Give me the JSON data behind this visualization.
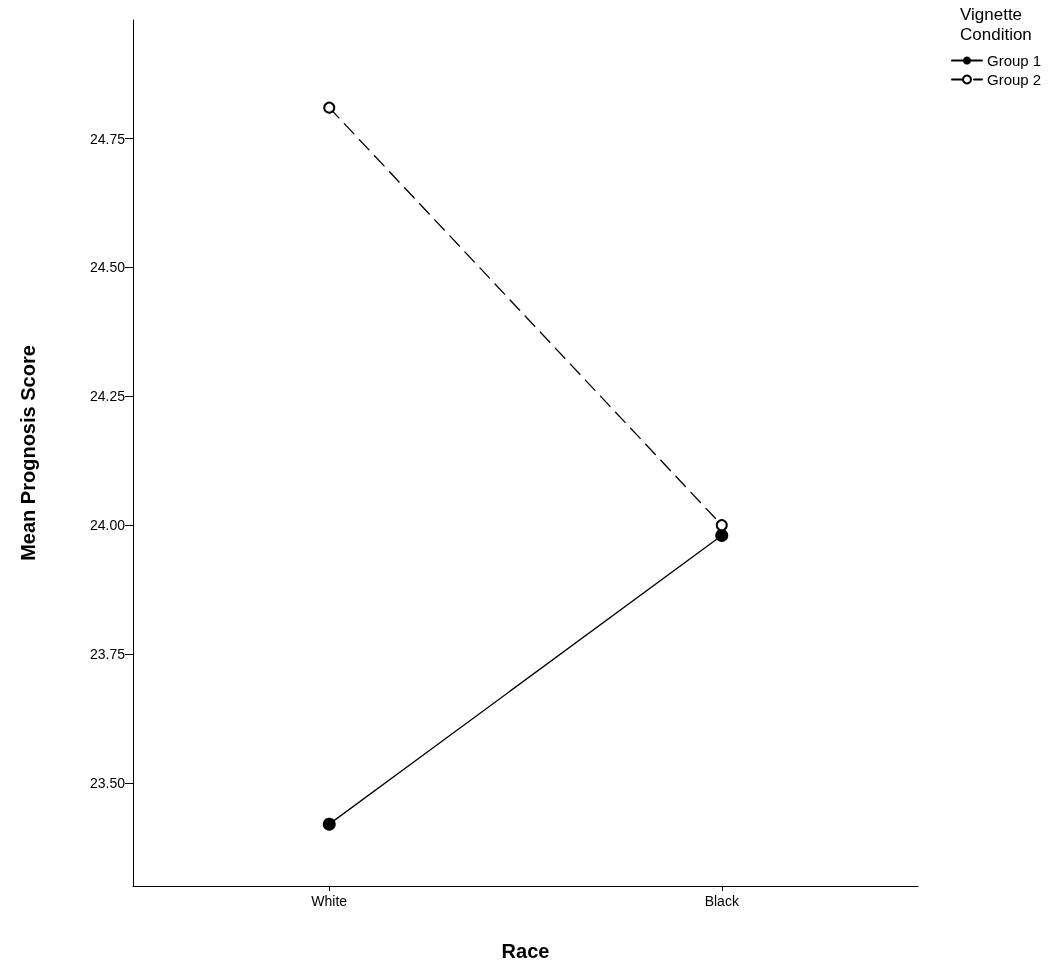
{
  "chart_data": {
    "type": "line",
    "xlabel": "Race",
    "ylabel": "Mean Prognosis Score",
    "legend_title": "Vignette Condition",
    "categories": [
      "White",
      "Black"
    ],
    "series": [
      {
        "name": "Group 1",
        "color": "#000000",
        "line_style": "solid",
        "values": [
          23.42,
          23.98
        ]
      },
      {
        "name": "Group 2",
        "color": "#000000",
        "line_style": "dashed",
        "values": [
          24.81,
          24.0
        ]
      }
    ],
    "ylim": [
      23.3,
      24.98
    ],
    "yticks": [
      {
        "value": 23.5,
        "label": "23.50"
      },
      {
        "value": 23.75,
        "label": "23.75"
      },
      {
        "value": 24,
        "label": "24.00"
      },
      {
        "value": 24.25,
        "label": "24.25"
      },
      {
        "value": 24.5,
        "label": "24.50"
      },
      {
        "value": 24.75,
        "label": "24.75"
      }
    ],
    "marker": "circle",
    "grid": false,
    "legend": "top right"
  }
}
